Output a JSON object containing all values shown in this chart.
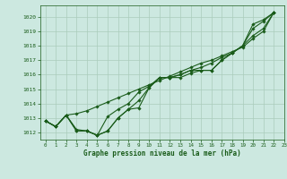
{
  "title": "Graphe pression niveau de la mer (hPa)",
  "bg_color": "#cce8e0",
  "grid_color": "#aaccbb",
  "line_color": "#1a5c1a",
  "marker_color": "#1a5c1a",
  "xlim": [
    -0.5,
    23
  ],
  "ylim": [
    1011.5,
    1020.8
  ],
  "yticks": [
    1012,
    1013,
    1014,
    1015,
    1016,
    1017,
    1018,
    1019,
    1020
  ],
  "xticks": [
    0,
    1,
    2,
    3,
    4,
    5,
    6,
    7,
    8,
    9,
    10,
    11,
    12,
    13,
    14,
    15,
    16,
    17,
    18,
    19,
    20,
    21,
    22,
    23
  ],
  "series": [
    [
      1012.8,
      1012.4,
      1013.2,
      1012.1,
      1012.1,
      1011.8,
      1012.1,
      1013.0,
      1013.6,
      1013.7,
      1015.1,
      1015.8,
      1015.8,
      1015.8,
      1016.1,
      1016.3,
      1016.3,
      1017.0,
      1017.5,
      1018.0,
      1019.5,
      1019.8,
      1020.3
    ],
    [
      1012.8,
      1012.4,
      1013.2,
      1012.1,
      1012.1,
      1011.8,
      1012.1,
      1013.0,
      1013.6,
      1014.2,
      1015.1,
      1015.8,
      1015.8,
      1016.0,
      1016.3,
      1016.3,
      1016.3,
      1017.0,
      1017.5,
      1018.0,
      1019.2,
      1019.7,
      1020.3
    ],
    [
      1012.8,
      1012.4,
      1013.2,
      1012.2,
      1012.1,
      1011.8,
      1013.1,
      1013.6,
      1014.0,
      1014.8,
      1015.2,
      1015.8,
      1015.8,
      1016.0,
      1016.3,
      1016.5,
      1016.8,
      1017.2,
      1017.5,
      1018.0,
      1018.7,
      1019.2,
      1020.3
    ],
    [
      1012.8,
      1012.4,
      1013.2,
      1013.3,
      1013.5,
      1013.8,
      1014.1,
      1014.4,
      1014.7,
      1015.0,
      1015.3,
      1015.6,
      1015.9,
      1016.2,
      1016.5,
      1016.8,
      1017.0,
      1017.3,
      1017.6,
      1017.9,
      1018.5,
      1019.0,
      1020.3
    ]
  ]
}
